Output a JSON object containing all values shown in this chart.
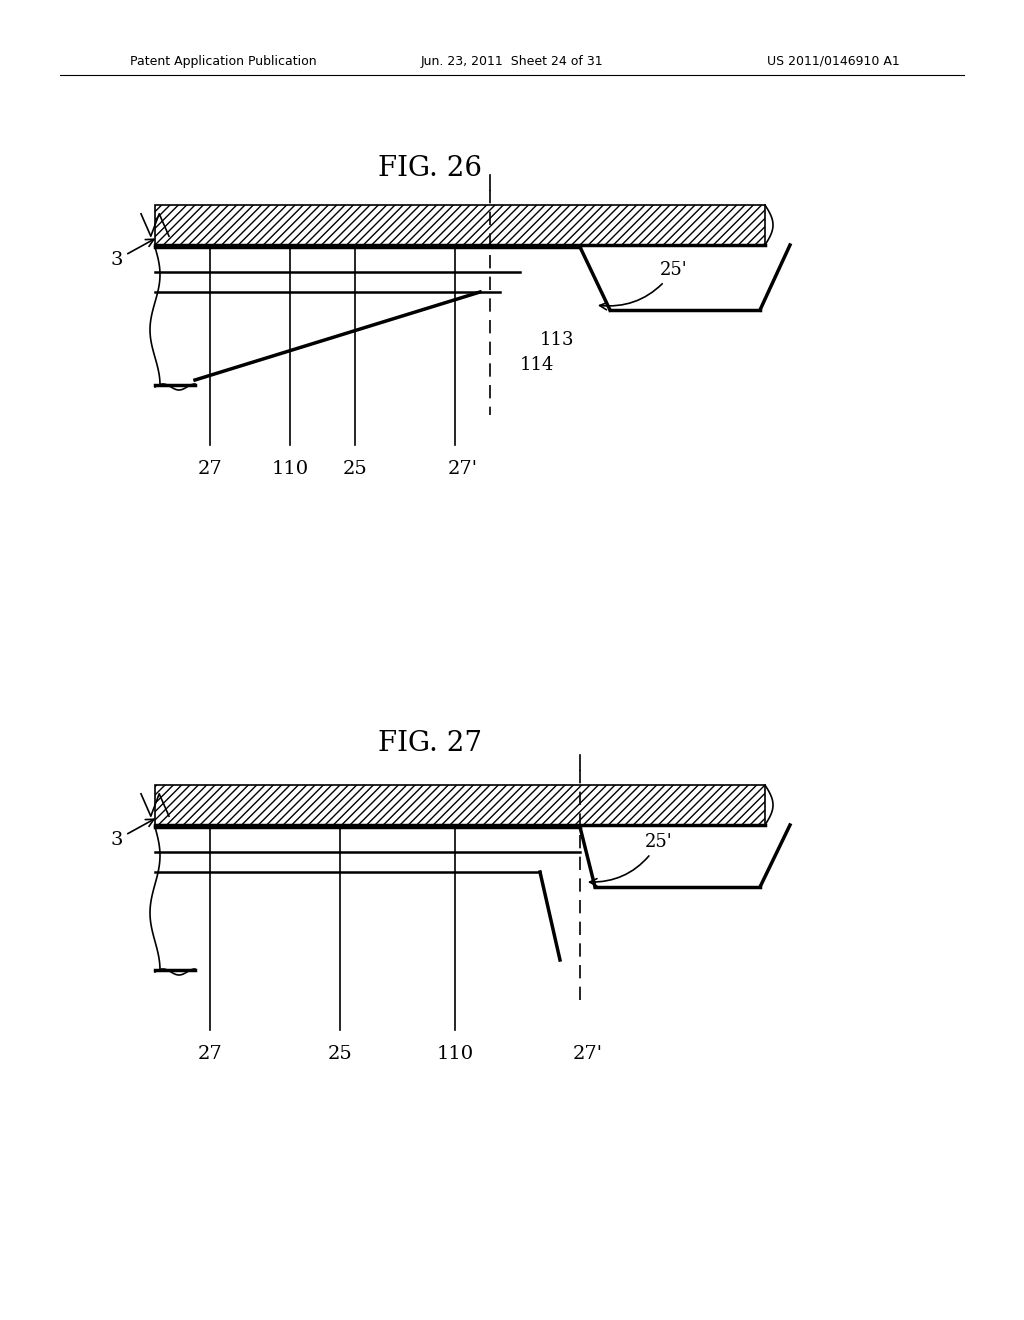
{
  "bg_color": "#ffffff",
  "line_color": "#000000",
  "header_left": "Patent Application Publication",
  "header_mid": "Jun. 23, 2011  Sheet 24 of 31",
  "header_right": "US 2011/0146910 A1",
  "fig26_title": "FIG. 26",
  "fig27_title": "FIG. 27"
}
